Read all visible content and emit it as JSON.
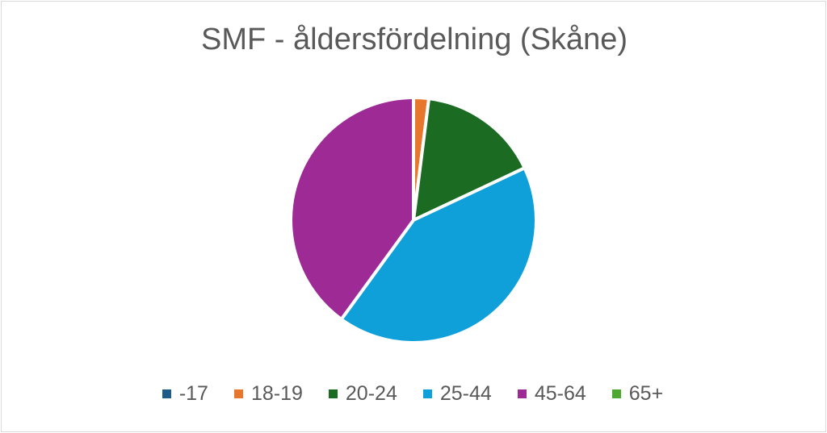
{
  "chart_data": {
    "type": "pie",
    "title": "SMF - åldersfördelning (Skåne)",
    "categories": [
      "-17",
      "18-19",
      "20-24",
      "25-44",
      "45-64",
      "65+"
    ],
    "values": [
      0,
      2,
      16,
      42,
      40,
      0
    ],
    "colors": [
      "#1f5c8a",
      "#e8772e",
      "#1b6b23",
      "#0fa0d9",
      "#9e2a95",
      "#4ea72e"
    ],
    "legend_position": "bottom"
  }
}
